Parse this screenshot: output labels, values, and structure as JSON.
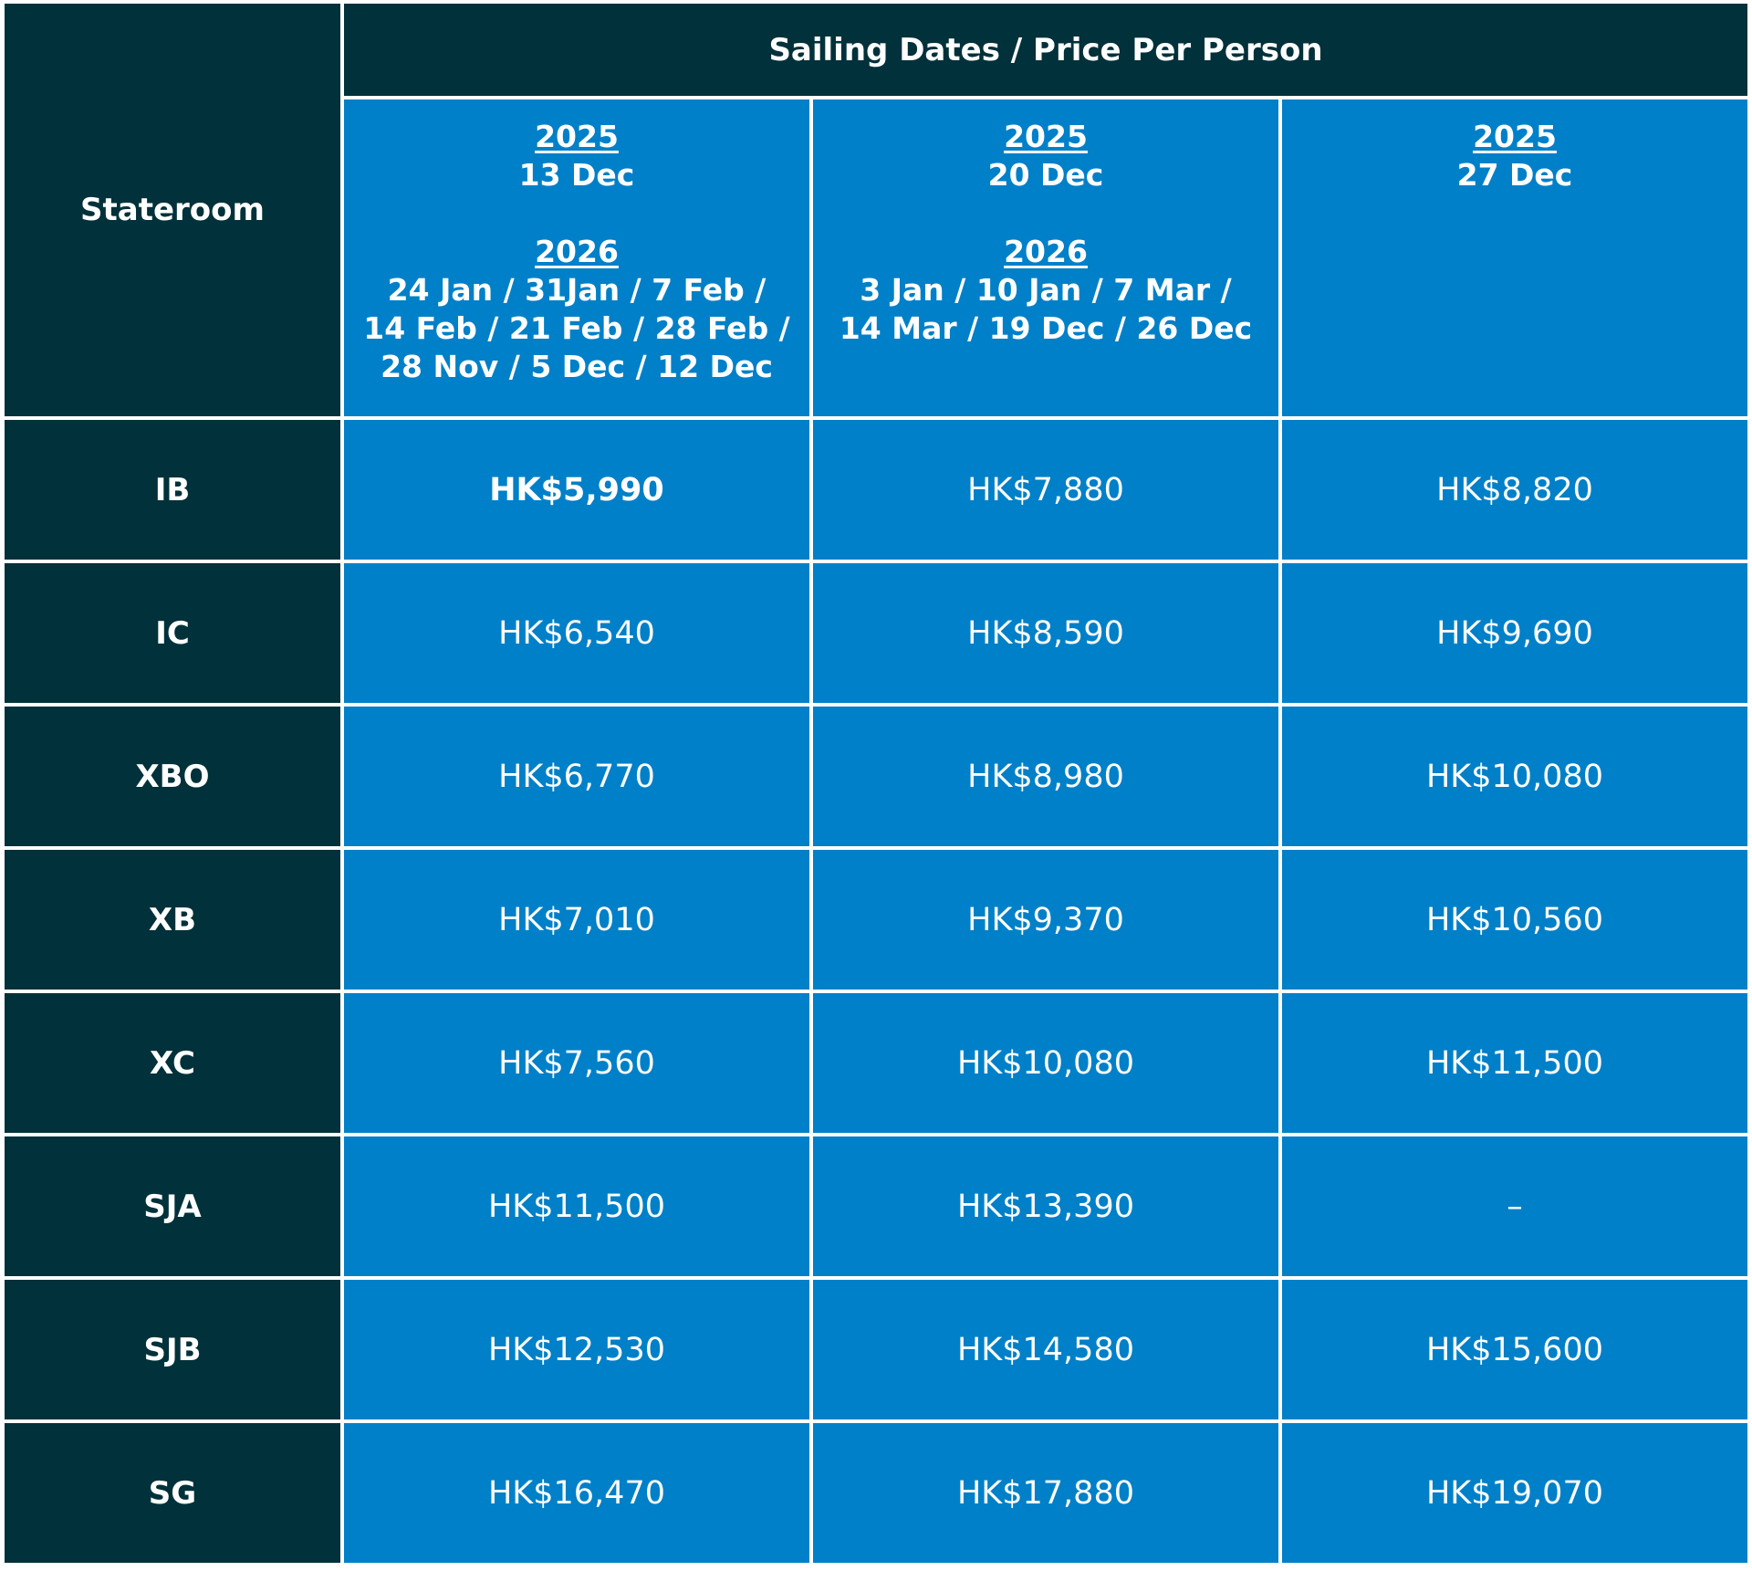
{
  "table": {
    "header": {
      "stateroom": "Stateroom",
      "group": "Sailing Dates / Price Per Person",
      "columns": [
        {
          "blocks": [
            {
              "year": "2025",
              "dates": [
                "13 Dec"
              ]
            },
            {
              "year": "2026",
              "dates": [
                "24 Jan / 31Jan / 7 Feb /",
                "14 Feb / 21 Feb / 28 Feb /",
                "28 Nov / 5 Dec / 12 Dec"
              ]
            }
          ]
        },
        {
          "blocks": [
            {
              "year": "2025",
              "dates": [
                "20 Dec"
              ]
            },
            {
              "year": "2026",
              "dates": [
                "3 Jan / 10 Jan / 7 Mar /",
                "14 Mar / 19 Dec / 26 Dec"
              ]
            }
          ]
        },
        {
          "blocks": [
            {
              "year": "2025",
              "dates": [
                "27 Dec"
              ]
            }
          ]
        }
      ]
    },
    "rows": [
      {
        "stateroom": "IB",
        "prices": [
          "HK$5,990",
          "HK$7,880",
          "HK$8,820"
        ]
      },
      {
        "stateroom": "IC",
        "prices": [
          "HK$6,540",
          "HK$8,590",
          "HK$9,690"
        ]
      },
      {
        "stateroom": "XBO",
        "prices": [
          "HK$6,770",
          "HK$8,980",
          "HK$10,080"
        ]
      },
      {
        "stateroom": "XB",
        "prices": [
          "HK$7,010",
          "HK$9,370",
          "HK$10,560"
        ]
      },
      {
        "stateroom": "XC",
        "prices": [
          "HK$7,560",
          "HK$10,080",
          "HK$11,500"
        ]
      },
      {
        "stateroom": "SJA",
        "prices": [
          "HK$11,500",
          "HK$13,390",
          "–"
        ]
      },
      {
        "stateroom": "SJB",
        "prices": [
          "HK$12,530",
          "HK$14,580",
          "HK$15,600"
        ]
      },
      {
        "stateroom": "SG",
        "prices": [
          "HK$16,470",
          "HK$17,880",
          "HK$19,070"
        ]
      }
    ]
  }
}
